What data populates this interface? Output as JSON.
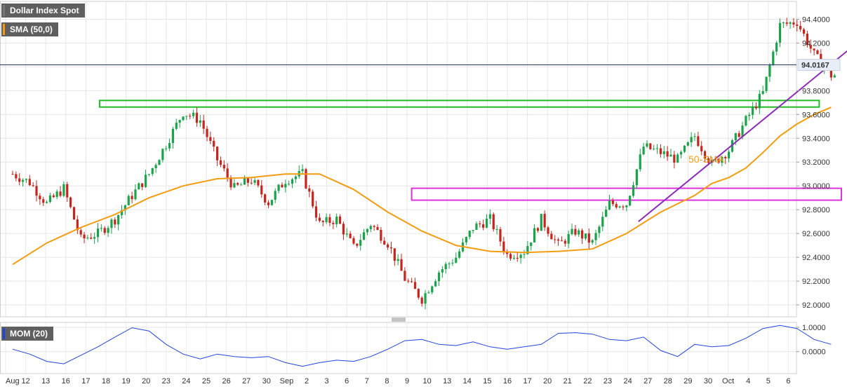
{
  "legend": {
    "instrument": "Dollar Index Spot",
    "sma": "SMA (50,0)",
    "momentum": "MOM (20)"
  },
  "colors": {
    "up": "#1aa34a",
    "down": "#c5251c",
    "sma": "#f39c12",
    "trendline": "#8b2bb8",
    "resistance_box": "#22bb22",
    "support_box": "#dd33dd",
    "momentum": "#2244dd",
    "price_line": "#223366",
    "legend_price_bar": "#777777",
    "legend_sma_bar": "#f39c12",
    "legend_mom_bar": "#2244dd"
  },
  "chart_data": [
    {
      "type": "candlestick",
      "title": "Dollar Index Spot",
      "ylim": [
        91.9,
        94.55
      ],
      "y_ticks": [
        "94.4000",
        "94.2000",
        "94.0000",
        "93.8000",
        "93.6000",
        "93.4000",
        "93.2000",
        "93.0000",
        "92.8000",
        "92.6000",
        "92.4000",
        "92.2000",
        "92.0000"
      ],
      "x_labels": [
        "Aug",
        "12",
        "13",
        "16",
        "17",
        "18",
        "19",
        "20",
        "23",
        "24",
        "25",
        "26",
        "27",
        "30",
        "Sep",
        "2",
        "3",
        "6",
        "7",
        "8",
        "9",
        "10",
        "13",
        "14",
        "15",
        "16",
        "17",
        "20",
        "21",
        "22",
        "23",
        "24",
        "27",
        "28",
        "29",
        "30",
        "Oct",
        "4",
        "5",
        "6"
      ],
      "current_price": 94.0167,
      "current_price_label": "94.0167",
      "annotation": "50-SMA",
      "close_path": [
        [
          0,
          93.1
        ],
        [
          1,
          93.03
        ],
        [
          2,
          92.85
        ],
        [
          3,
          92.98
        ],
        [
          4,
          92.55
        ],
        [
          5,
          92.6
        ],
        [
          6,
          92.72
        ],
        [
          7,
          92.92
        ],
        [
          8,
          93.1
        ],
        [
          9,
          93.35
        ],
        [
          10,
          93.62
        ],
        [
          11,
          93.55
        ],
        [
          12,
          93.22
        ],
        [
          13,
          92.98
        ],
        [
          14,
          93.05
        ],
        [
          15,
          92.86
        ],
        [
          16,
          93.05
        ],
        [
          17,
          93.1
        ],
        [
          18,
          92.68
        ],
        [
          19,
          92.72
        ],
        [
          20,
          92.48
        ],
        [
          21,
          92.68
        ],
        [
          22,
          92.52
        ],
        [
          23,
          92.22
        ],
        [
          24,
          92.05
        ],
        [
          25,
          92.28
        ],
        [
          26,
          92.4
        ],
        [
          27,
          92.65
        ],
        [
          28,
          92.72
        ],
        [
          29,
          92.42
        ],
        [
          30,
          92.45
        ],
        [
          31,
          92.72
        ],
        [
          32,
          92.5
        ],
        [
          33,
          92.62
        ],
        [
          34,
          92.52
        ],
        [
          35,
          92.85
        ],
        [
          36,
          92.85
        ],
        [
          37,
          93.33
        ],
        [
          38,
          93.28
        ],
        [
          39,
          93.22
        ],
        [
          40,
          93.42
        ],
        [
          41,
          93.18
        ],
        [
          42,
          93.3
        ],
        [
          43,
          93.55
        ],
        [
          44,
          93.78
        ],
        [
          45,
          94.35
        ],
        [
          46,
          94.38
        ],
        [
          47,
          94.1
        ],
        [
          48,
          93.93
        ]
      ],
      "sma_50": [
        [
          0,
          92.34
        ],
        [
          2,
          92.52
        ],
        [
          4,
          92.65
        ],
        [
          6,
          92.76
        ],
        [
          8,
          92.9
        ],
        [
          10,
          93.0
        ],
        [
          12,
          93.06
        ],
        [
          14,
          93.07
        ],
        [
          16,
          93.1
        ],
        [
          18,
          93.1
        ],
        [
          20,
          92.97
        ],
        [
          22,
          92.78
        ],
        [
          24,
          92.62
        ],
        [
          26,
          92.5
        ],
        [
          28,
          92.45
        ],
        [
          30,
          92.44
        ],
        [
          32,
          92.45
        ],
        [
          34,
          92.47
        ],
        [
          36,
          92.6
        ],
        [
          38,
          92.78
        ],
        [
          40,
          92.92
        ],
        [
          41,
          93.02
        ],
        [
          42,
          93.07
        ],
        [
          43,
          93.15
        ],
        [
          44,
          93.28
        ],
        [
          45,
          93.42
        ],
        [
          46,
          93.52
        ],
        [
          47,
          93.6
        ],
        [
          48,
          93.66
        ]
      ],
      "resistance_zone": {
        "x_range": [
          5.1,
          47.3
        ],
        "y_range": [
          93.68,
          93.7
        ]
      },
      "support_zone": {
        "x_range": [
          23.4,
          48.6
        ],
        "y_range": [
          92.88,
          92.98
        ]
      },
      "trendline": {
        "from": [
          36.7,
          92.7
        ],
        "to": [
          49.0,
          94.14
        ]
      }
    },
    {
      "type": "line",
      "title": "MOM (20)",
      "ylim": [
        -0.9,
        1.2
      ],
      "y_ticks": [
        "1.0000",
        "0.0000"
      ],
      "values": [
        [
          0,
          0.1
        ],
        [
          1,
          -0.1
        ],
        [
          2,
          -0.4
        ],
        [
          3,
          -0.5
        ],
        [
          4,
          -0.15
        ],
        [
          5,
          0.2
        ],
        [
          6,
          0.6
        ],
        [
          7,
          0.98
        ],
        [
          8,
          0.85
        ],
        [
          9,
          0.3
        ],
        [
          10,
          -0.1
        ],
        [
          11,
          -0.3
        ],
        [
          12,
          -0.1
        ],
        [
          13,
          -0.2
        ],
        [
          14,
          -0.25
        ],
        [
          15,
          -0.2
        ],
        [
          16,
          -0.45
        ],
        [
          17,
          -0.6
        ],
        [
          18,
          -0.45
        ],
        [
          19,
          -0.35
        ],
        [
          20,
          -0.4
        ],
        [
          21,
          -0.2
        ],
        [
          22,
          0.1
        ],
        [
          23,
          0.45
        ],
        [
          24,
          0.5
        ],
        [
          25,
          0.3
        ],
        [
          26,
          0.25
        ],
        [
          27,
          0.4
        ],
        [
          28,
          0.2
        ],
        [
          29,
          0.1
        ],
        [
          30,
          0.2
        ],
        [
          31,
          0.3
        ],
        [
          32,
          0.75
        ],
        [
          33,
          0.78
        ],
        [
          34,
          0.72
        ],
        [
          35,
          0.5
        ],
        [
          36,
          0.45
        ],
        [
          37,
          0.6
        ],
        [
          38,
          0.05
        ],
        [
          39,
          -0.2
        ],
        [
          40,
          0.3
        ],
        [
          41,
          0.2
        ],
        [
          42,
          0.25
        ],
        [
          43,
          0.55
        ],
        [
          44,
          0.95
        ],
        [
          45,
          1.08
        ],
        [
          46,
          0.95
        ],
        [
          47,
          0.5
        ],
        [
          48,
          0.3
        ]
      ]
    }
  ]
}
